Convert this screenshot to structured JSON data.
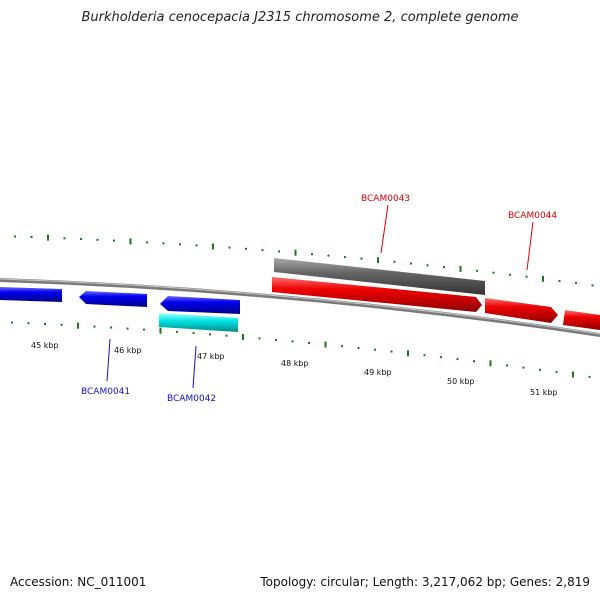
{
  "title": "Burkholderia cenocepacia J2315 chromosome 2, complete genome",
  "footer": {
    "accession": "Accession: NC_011001",
    "summary": "Topology: circular; Length: 3,217,062 bp; Genes: 2,819"
  },
  "ticks": [
    "45 kbp",
    "46 kbp",
    "47 kbp",
    "48 kbp",
    "49 kbp",
    "50 kbp",
    "51 kbp"
  ],
  "genes": [
    {
      "label": "BCAM0041",
      "color": "#1010dd"
    },
    {
      "label": "BCAM0042",
      "color": "#1010dd"
    },
    {
      "label": "BCAM0043",
      "color": "#dd0000"
    },
    {
      "label": "BCAM0044",
      "color": "#dd0000"
    }
  ],
  "colors": {
    "reverse_cds": "#0000ee",
    "forward_cds": "#ee0000",
    "rna": "#00e5e5",
    "grey_feature": "#666666",
    "backbone": "#808080",
    "tick": "#1a7a1a"
  }
}
